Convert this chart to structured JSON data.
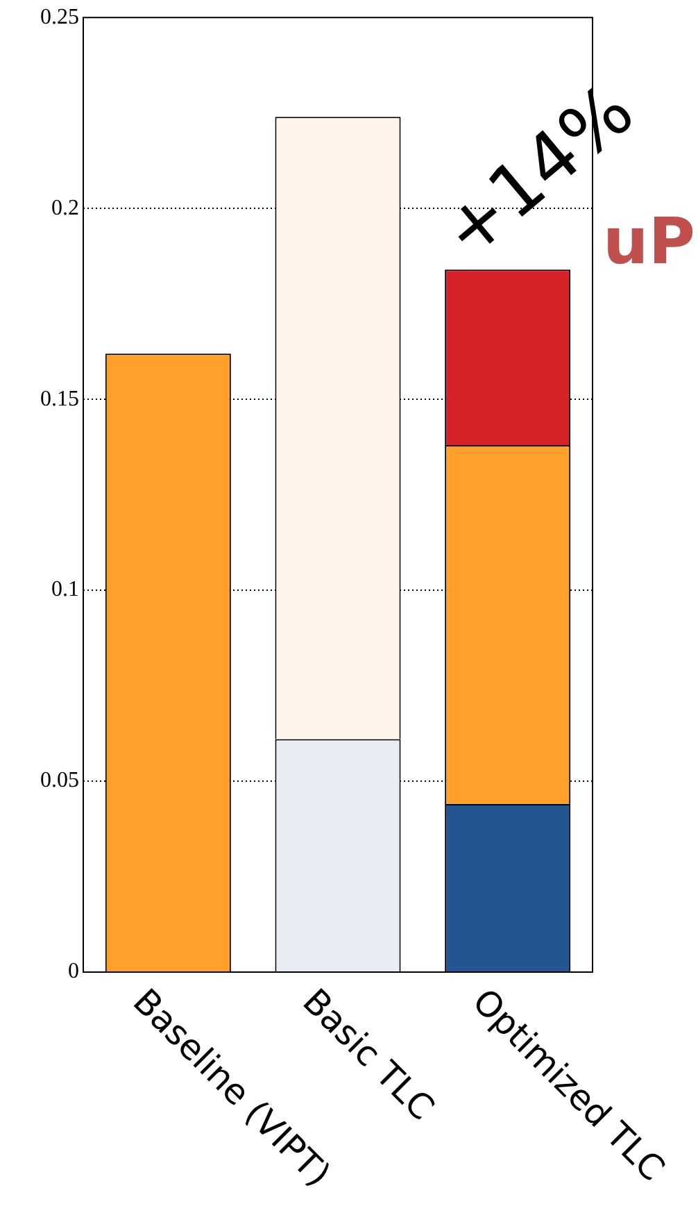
{
  "chart_data": {
    "type": "bar",
    "stacked": true,
    "categories": [
      "Baseline (VIPT)",
      "Basic TLC",
      "Optimized TLC"
    ],
    "series": [
      {
        "colors": [
          "#245591",
          "#e8ecf3",
          "#245591"
        ],
        "values": [
          null,
          0.061,
          0.044
        ]
      },
      {
        "colors": [
          "#ffa02a",
          "#fff4ea",
          "#ffa02a"
        ],
        "values": [
          0.162,
          0.163,
          0.094
        ]
      },
      {
        "colors": [
          "#d8222a",
          "#d8222a",
          "#d8222a"
        ],
        "values": [
          null,
          null,
          0.046
        ]
      }
    ],
    "ylim": [
      0,
      0.25
    ],
    "yticks": [
      0,
      0.05,
      0.1,
      0.15,
      0.2,
      0.25
    ],
    "grid": "y",
    "legend": false,
    "annotations": [
      {
        "text": "+14%",
        "x": "Optimized TLC",
        "y": 0.184
      },
      "uP"
    ]
  }
}
